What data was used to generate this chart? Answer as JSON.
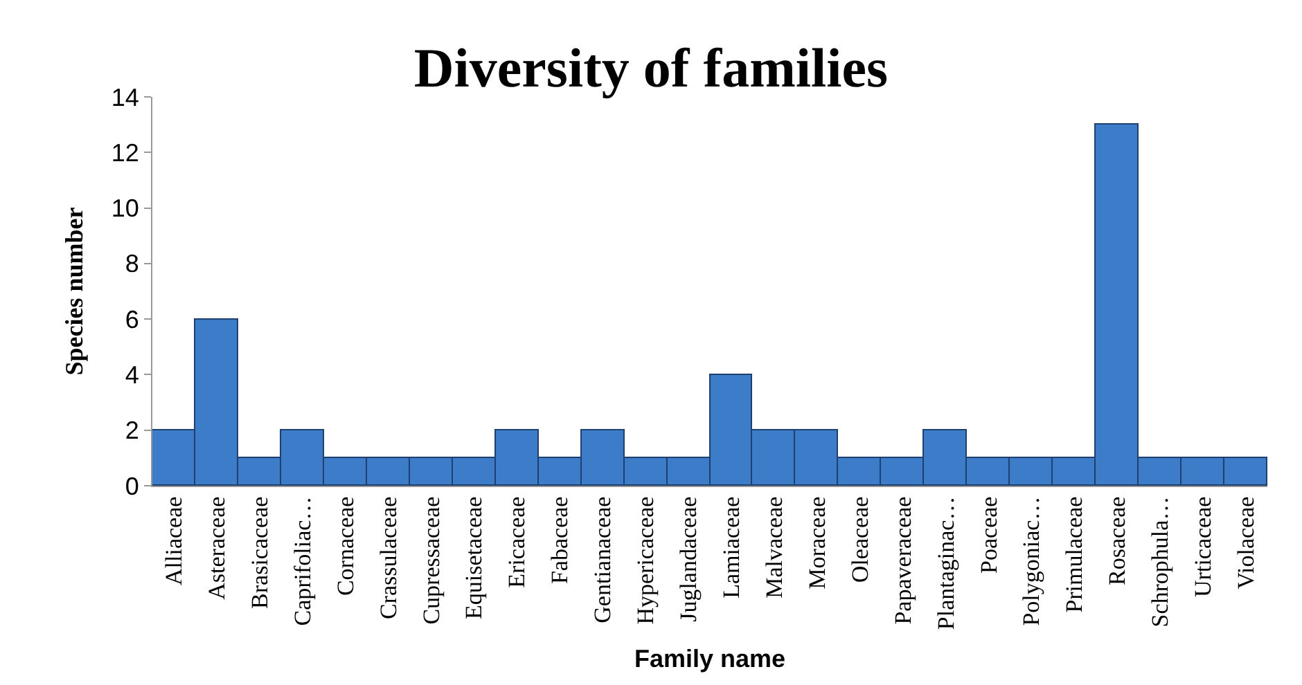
{
  "chart_data": {
    "type": "bar",
    "title": "Diversity of families",
    "xlabel": "Family name",
    "ylabel": "Species number",
    "categories": [
      "Alliaceae",
      "Asteraceae",
      "Brasicaceae",
      "Caprifoliac…",
      "Cornaceae",
      "Crassulaceae",
      "Cupressaceae",
      "Equisetaceae",
      "Ericaceae",
      "Fabaceae",
      "Gentianaceae",
      "Hypericaceae",
      "Juglandaceae",
      "Lamiaceae",
      "Malvaceae",
      "Moraceae",
      "Oleaceae",
      "Papaveraceae",
      "Plantaginac…",
      "Poaceae",
      "Polygoniac…",
      "Primulaceae",
      "Rosaceae",
      "Schrophula…",
      "Urticaceae",
      "Violaceae"
    ],
    "values": [
      2,
      6,
      1,
      2,
      1,
      1,
      1,
      1,
      2,
      1,
      2,
      1,
      1,
      4,
      2,
      2,
      1,
      1,
      2,
      1,
      1,
      1,
      13,
      1,
      1,
      1
    ],
    "color": "#3d7cc9",
    "ylim": [
      0,
      14
    ],
    "yticks": [
      0,
      2,
      4,
      6,
      8,
      10,
      12,
      14
    ]
  }
}
